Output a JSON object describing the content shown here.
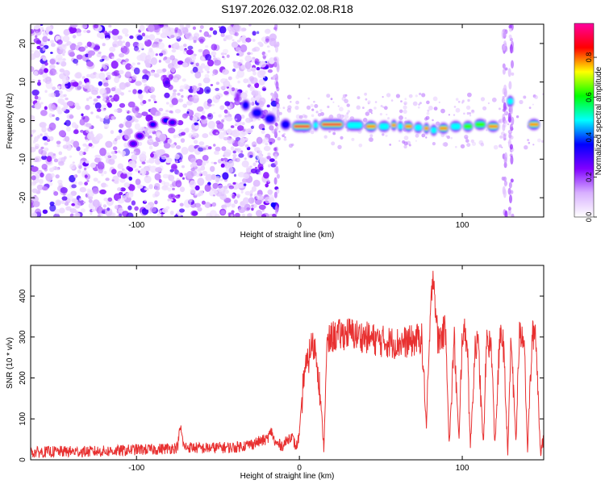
{
  "title": "S197.2026.032.02.08.R18",
  "chart_data": [
    {
      "type": "heatmap",
      "xlabel": "Height of straight line (km)",
      "ylabel": "Frequency (Hz)",
      "xlim": [
        -165,
        150
      ],
      "ylim": [
        -25,
        25
      ],
      "xticks": [
        -100,
        0,
        100
      ],
      "yticks": [
        -20,
        -10,
        0,
        10,
        20
      ],
      "colorbar": {
        "label": "Normalized spectral amplitude",
        "range": [
          0,
          0.97
        ],
        "ticks": [
          0.0,
          0.2,
          0.4,
          0.6,
          0.8
        ],
        "colors": [
          "#ffffff",
          "#d8b0ff",
          "#8000ff",
          "#0000ff",
          "#00ffff",
          "#00ff00",
          "#ffff00",
          "#ff0000",
          "#ff00a0"
        ]
      },
      "band": [
        {
          "x0": -40,
          "x1": -36,
          "f": 6.0,
          "amp": 0.28
        },
        {
          "x0": -36,
          "x1": -30,
          "f": 4.0,
          "amp": 0.35
        },
        {
          "x0": -30,
          "x1": -22,
          "f": 2.0,
          "amp": 0.42
        },
        {
          "x0": -22,
          "x1": -14,
          "f": 0.5,
          "amp": 0.45
        },
        {
          "x0": -12,
          "x1": -5,
          "f": -1.0,
          "amp": 0.45
        },
        {
          "x0": -5,
          "x1": 8,
          "f": -1.5,
          "amp": 0.92
        },
        {
          "x0": 8,
          "x1": 12,
          "f": -1.2,
          "amp": 0.5
        },
        {
          "x0": 12,
          "x1": 28,
          "f": -1.0,
          "amp": 0.95
        },
        {
          "x0": 28,
          "x1": 40,
          "f": -1.2,
          "amp": 0.6
        },
        {
          "x0": 40,
          "x1": 48,
          "f": -1.5,
          "amp": 0.88
        },
        {
          "x0": 48,
          "x1": 56,
          "f": -1.5,
          "amp": 0.6
        },
        {
          "x0": 56,
          "x1": 60,
          "f": -1.2,
          "amp": 0.85
        },
        {
          "x0": 60,
          "x1": 64,
          "f": -1.5,
          "amp": 0.6
        },
        {
          "x0": 64,
          "x1": 70,
          "f": -1.5,
          "amp": 0.9
        },
        {
          "x0": 70,
          "x1": 76,
          "f": -1.8,
          "amp": 0.6
        },
        {
          "x0": 76,
          "x1": 80,
          "f": -2.0,
          "amp": 0.8
        },
        {
          "x0": 80,
          "x1": 85,
          "f": -2.5,
          "amp": 0.55
        },
        {
          "x0": 85,
          "x1": 92,
          "f": -2.0,
          "amp": 0.85
        },
        {
          "x0": 92,
          "x1": 100,
          "f": -1.5,
          "amp": 0.6
        },
        {
          "x0": 100,
          "x1": 107,
          "f": -1.5,
          "amp": 0.7
        },
        {
          "x0": 107,
          "x1": 115,
          "f": -1.0,
          "amp": 0.75
        },
        {
          "x0": 115,
          "x1": 123,
          "f": -1.5,
          "amp": 0.9
        },
        {
          "x0": 127,
          "x1": 132,
          "f": 5.0,
          "amp": 0.6
        },
        {
          "x0": 140,
          "x1": 148,
          "f": -1.0,
          "amp": 0.85
        }
      ],
      "blobs": [
        {
          "x": -90,
          "f": -1.0,
          "amp": 0.35
        },
        {
          "x": -82,
          "f": 0.0,
          "amp": 0.38
        },
        {
          "x": -78,
          "f": -0.5,
          "amp": 0.32
        },
        {
          "x": -98,
          "f": -4.0,
          "amp": 0.32
        },
        {
          "x": -102,
          "f": -6.0,
          "amp": 0.3
        }
      ],
      "noise_x_range": [
        -165,
        -14
      ],
      "stripes_x": [
        -14,
        126,
        130
      ]
    },
    {
      "type": "line",
      "xlabel": "Height of straight line (km)",
      "ylabel": "SNR (10 * v/v)",
      "xlim": [
        -165,
        150
      ],
      "ylim": [
        0,
        475
      ],
      "xticks": [
        -100,
        0,
        100
      ],
      "yticks": [
        0,
        100,
        200,
        300,
        400
      ],
      "color": "#e83030",
      "x": [
        -165,
        -150,
        -130,
        -110,
        -100,
        -90,
        -80,
        -75,
        -73,
        -71,
        -60,
        -50,
        -40,
        -30,
        -20,
        -17,
        -15,
        -10,
        -5,
        -2,
        0,
        3,
        5,
        7,
        10,
        12,
        15,
        17,
        20,
        30,
        40,
        50,
        60,
        70,
        75,
        78,
        80,
        82,
        85,
        90,
        92,
        95,
        98,
        100,
        103,
        105,
        108,
        110,
        113,
        115,
        118,
        120,
        123,
        125,
        128,
        130,
        133,
        135,
        138,
        140,
        143,
        145,
        148,
        150
      ],
      "y": [
        18,
        20,
        20,
        22,
        25,
        25,
        28,
        30,
        80,
        32,
        28,
        30,
        30,
        38,
        50,
        70,
        40,
        35,
        60,
        30,
        60,
        220,
        230,
        280,
        270,
        200,
        30,
        280,
        300,
        310,
        300,
        290,
        285,
        290,
        300,
        80,
        300,
        470,
        290,
        320,
        30,
        300,
        40,
        310,
        300,
        30,
        290,
        270,
        30,
        300,
        270,
        30,
        290,
        300,
        20,
        300,
        40,
        300,
        310,
        20,
        300,
        320,
        20,
        50
      ]
    }
  ]
}
